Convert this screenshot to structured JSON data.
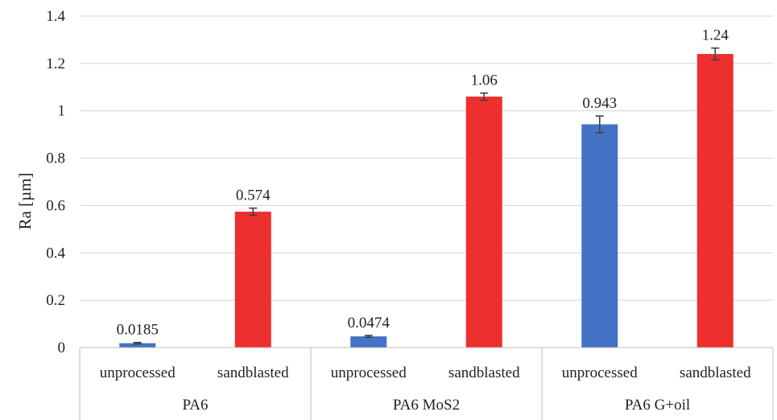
{
  "chart_data": {
    "type": "bar",
    "ylabel": "Ra [µm]",
    "xlabel": "",
    "ylim": [
      0,
      1.4
    ],
    "yticks": [
      0,
      0.2,
      0.4,
      0.6,
      0.8,
      1,
      1.2,
      1.4
    ],
    "ytick_labels": [
      "0",
      "0.2",
      "0.4",
      "0.6",
      "0.8",
      "1",
      "1.2",
      "1.4"
    ],
    "grid": true,
    "legend": "none",
    "groups": [
      {
        "label": "PA6",
        "bars": [
          {
            "category": "unprocessed",
            "value": 0.0185,
            "label": "0.0185",
            "error": 0.003,
            "color": "#4472c4"
          },
          {
            "category": "sandblasted",
            "value": 0.574,
            "label": "0.574",
            "error": 0.015,
            "color": "#ee2f2f"
          }
        ]
      },
      {
        "label": "PA6 MoS2",
        "bars": [
          {
            "category": "unprocessed",
            "value": 0.0474,
            "label": "0.0474",
            "error": 0.004,
            "color": "#4472c4"
          },
          {
            "category": "sandblasted",
            "value": 1.06,
            "label": "1.06",
            "error": 0.015,
            "color": "#ee2f2f"
          }
        ]
      },
      {
        "label": "PA6 G+oil",
        "bars": [
          {
            "category": "unprocessed",
            "value": 0.943,
            "label": "0.943",
            "error": 0.035,
            "color": "#4472c4"
          },
          {
            "category": "sandblasted",
            "value": 1.24,
            "label": "1.24",
            "error": 0.025,
            "color": "#ee2f2f"
          }
        ]
      }
    ]
  }
}
